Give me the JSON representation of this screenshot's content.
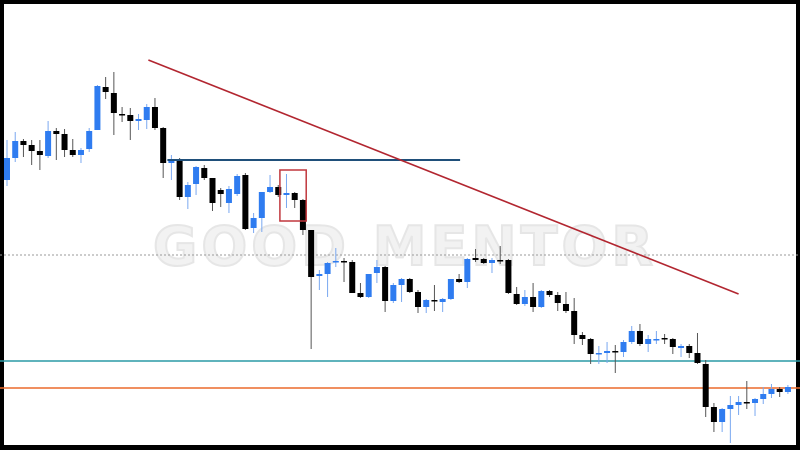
{
  "watermark": {
    "text": "GOOD MENTOR",
    "accent_up": "#d9f0d9",
    "accent_down": "#f8dcdc"
  },
  "chart_data": {
    "type": "candlestick",
    "title": "",
    "xlabel": "",
    "ylabel": "",
    "grid": false,
    "legend": "none",
    "colors": {
      "bull": "#2f7cf0",
      "bear": "#000000",
      "wick": "#555555"
    },
    "ylim": [
      0,
      450
    ],
    "candles": [
      [
        270,
        310,
        264,
        292
      ],
      [
        292,
        318,
        288,
        309
      ],
      [
        309,
        311,
        293,
        305
      ],
      [
        305,
        310,
        285,
        299
      ],
      [
        299,
        310,
        280,
        295
      ],
      [
        294,
        329,
        292,
        319
      ],
      [
        319,
        322,
        290,
        316
      ],
      [
        316,
        321,
        293,
        300
      ],
      [
        300,
        311,
        293,
        295
      ],
      [
        295,
        302,
        287,
        300
      ],
      [
        301,
        322,
        298,
        319
      ],
      [
        320,
        365,
        320,
        364
      ],
      [
        363,
        373,
        351,
        358
      ],
      [
        357,
        378,
        315,
        337
      ],
      [
        336,
        343,
        328,
        335
      ],
      [
        335,
        342,
        310,
        329
      ],
      [
        329,
        336,
        320,
        331
      ],
      [
        330,
        346,
        321,
        343
      ],
      [
        343,
        352,
        320,
        322
      ],
      [
        322,
        323,
        272,
        287
      ],
      [
        287,
        295,
        270,
        289
      ],
      [
        289,
        292,
        250,
        253
      ],
      [
        253,
        268,
        241,
        265
      ],
      [
        266,
        284,
        255,
        283
      ],
      [
        282,
        285,
        270,
        272
      ],
      [
        272,
        272,
        239,
        247
      ],
      [
        260,
        262,
        243,
        256
      ],
      [
        247,
        264,
        237,
        261
      ],
      [
        256,
        276,
        254,
        274
      ],
      [
        275,
        277,
        220,
        221
      ],
      [
        222,
        237,
        217,
        232
      ],
      [
        232,
        258,
        218,
        258
      ],
      [
        258,
        275,
        257,
        263
      ],
      [
        263,
        265,
        253,
        255
      ],
      [
        255,
        276,
        242,
        257
      ],
      [
        257,
        258,
        242,
        250
      ],
      [
        250,
        251,
        215,
        220
      ],
      [
        220,
        220,
        101,
        173
      ],
      [
        174,
        180,
        160,
        176
      ],
      [
        176,
        188,
        153,
        187
      ],
      [
        188,
        202,
        183,
        189
      ],
      [
        189,
        192,
        168,
        188
      ],
      [
        188,
        190,
        157,
        157
      ],
      [
        157,
        167,
        152,
        153
      ],
      [
        153,
        176,
        152,
        176
      ],
      [
        177,
        190,
        167,
        183
      ],
      [
        183,
        184,
        138,
        149
      ],
      [
        149,
        167,
        147,
        165
      ],
      [
        165,
        172,
        148,
        171
      ],
      [
        171,
        172,
        157,
        158
      ],
      [
        158,
        160,
        137,
        143
      ],
      [
        143,
        151,
        137,
        150
      ],
      [
        150,
        165,
        139,
        149
      ],
      [
        148,
        152,
        138,
        151
      ],
      [
        151,
        171,
        150,
        171
      ],
      [
        171,
        176,
        167,
        168
      ],
      [
        168,
        192,
        162,
        191
      ],
      [
        192,
        201,
        188,
        190
      ],
      [
        191,
        192,
        186,
        187
      ],
      [
        187,
        192,
        177,
        190
      ],
      [
        190,
        204,
        186,
        189
      ],
      [
        190,
        191,
        156,
        157
      ],
      [
        156,
        163,
        145,
        146
      ],
      [
        146,
        160,
        144,
        153
      ],
      [
        153,
        167,
        138,
        143
      ],
      [
        143,
        160,
        142,
        159
      ],
      [
        159,
        160,
        153,
        155
      ],
      [
        155,
        158,
        139,
        147
      ],
      [
        146,
        158,
        137,
        139
      ],
      [
        139,
        152,
        106,
        115
      ],
      [
        115,
        118,
        105,
        111
      ],
      [
        111,
        112,
        86,
        96
      ],
      [
        96,
        104,
        86,
        97
      ],
      [
        97,
        108,
        87,
        99
      ],
      [
        99,
        105,
        77,
        98
      ],
      [
        98,
        110,
        93,
        108
      ],
      [
        108,
        124,
        106,
        119
      ],
      [
        119,
        126,
        104,
        106
      ],
      [
        106,
        115,
        98,
        111
      ],
      [
        110,
        119,
        106,
        111
      ],
      [
        112,
        116,
        106,
        111
      ],
      [
        111,
        112,
        96,
        103
      ],
      [
        102,
        106,
        93,
        104
      ],
      [
        104,
        106,
        92,
        97
      ],
      [
        97,
        117,
        86,
        87
      ],
      [
        86,
        90,
        33,
        43
      ],
      [
        43,
        47,
        18,
        28
      ],
      [
        28,
        42,
        18,
        41
      ],
      [
        41,
        54,
        7,
        45
      ],
      [
        45,
        54,
        35,
        48
      ],
      [
        48,
        69,
        41,
        47
      ],
      [
        47,
        52,
        34,
        51
      ],
      [
        51,
        63,
        46,
        56
      ],
      [
        56,
        66,
        52,
        61
      ],
      [
        61,
        63,
        53,
        58
      ],
      [
        58,
        65,
        56,
        63
      ]
    ],
    "candle_fields": [
      "open",
      "high",
      "low",
      "close"
    ],
    "annotations": {
      "trendline": {
        "from": [
          17.2,
          390
        ],
        "to": [
          89,
          156
        ],
        "color": "#b22630"
      },
      "resistance": {
        "price": 290,
        "from": 20,
        "to": 55,
        "color": "#1f4f7a"
      },
      "dotted_level": {
        "price": 195,
        "color": "#999999"
      },
      "teal_level": {
        "price": 89,
        "color": "#2a9aa6"
      },
      "orange_level": {
        "price": 62,
        "color": "#ec6a2b"
      },
      "highlight_box": {
        "from": 33.2,
        "to": 36.4,
        "high": 280,
        "low": 229,
        "color": "#c0373d"
      }
    }
  }
}
